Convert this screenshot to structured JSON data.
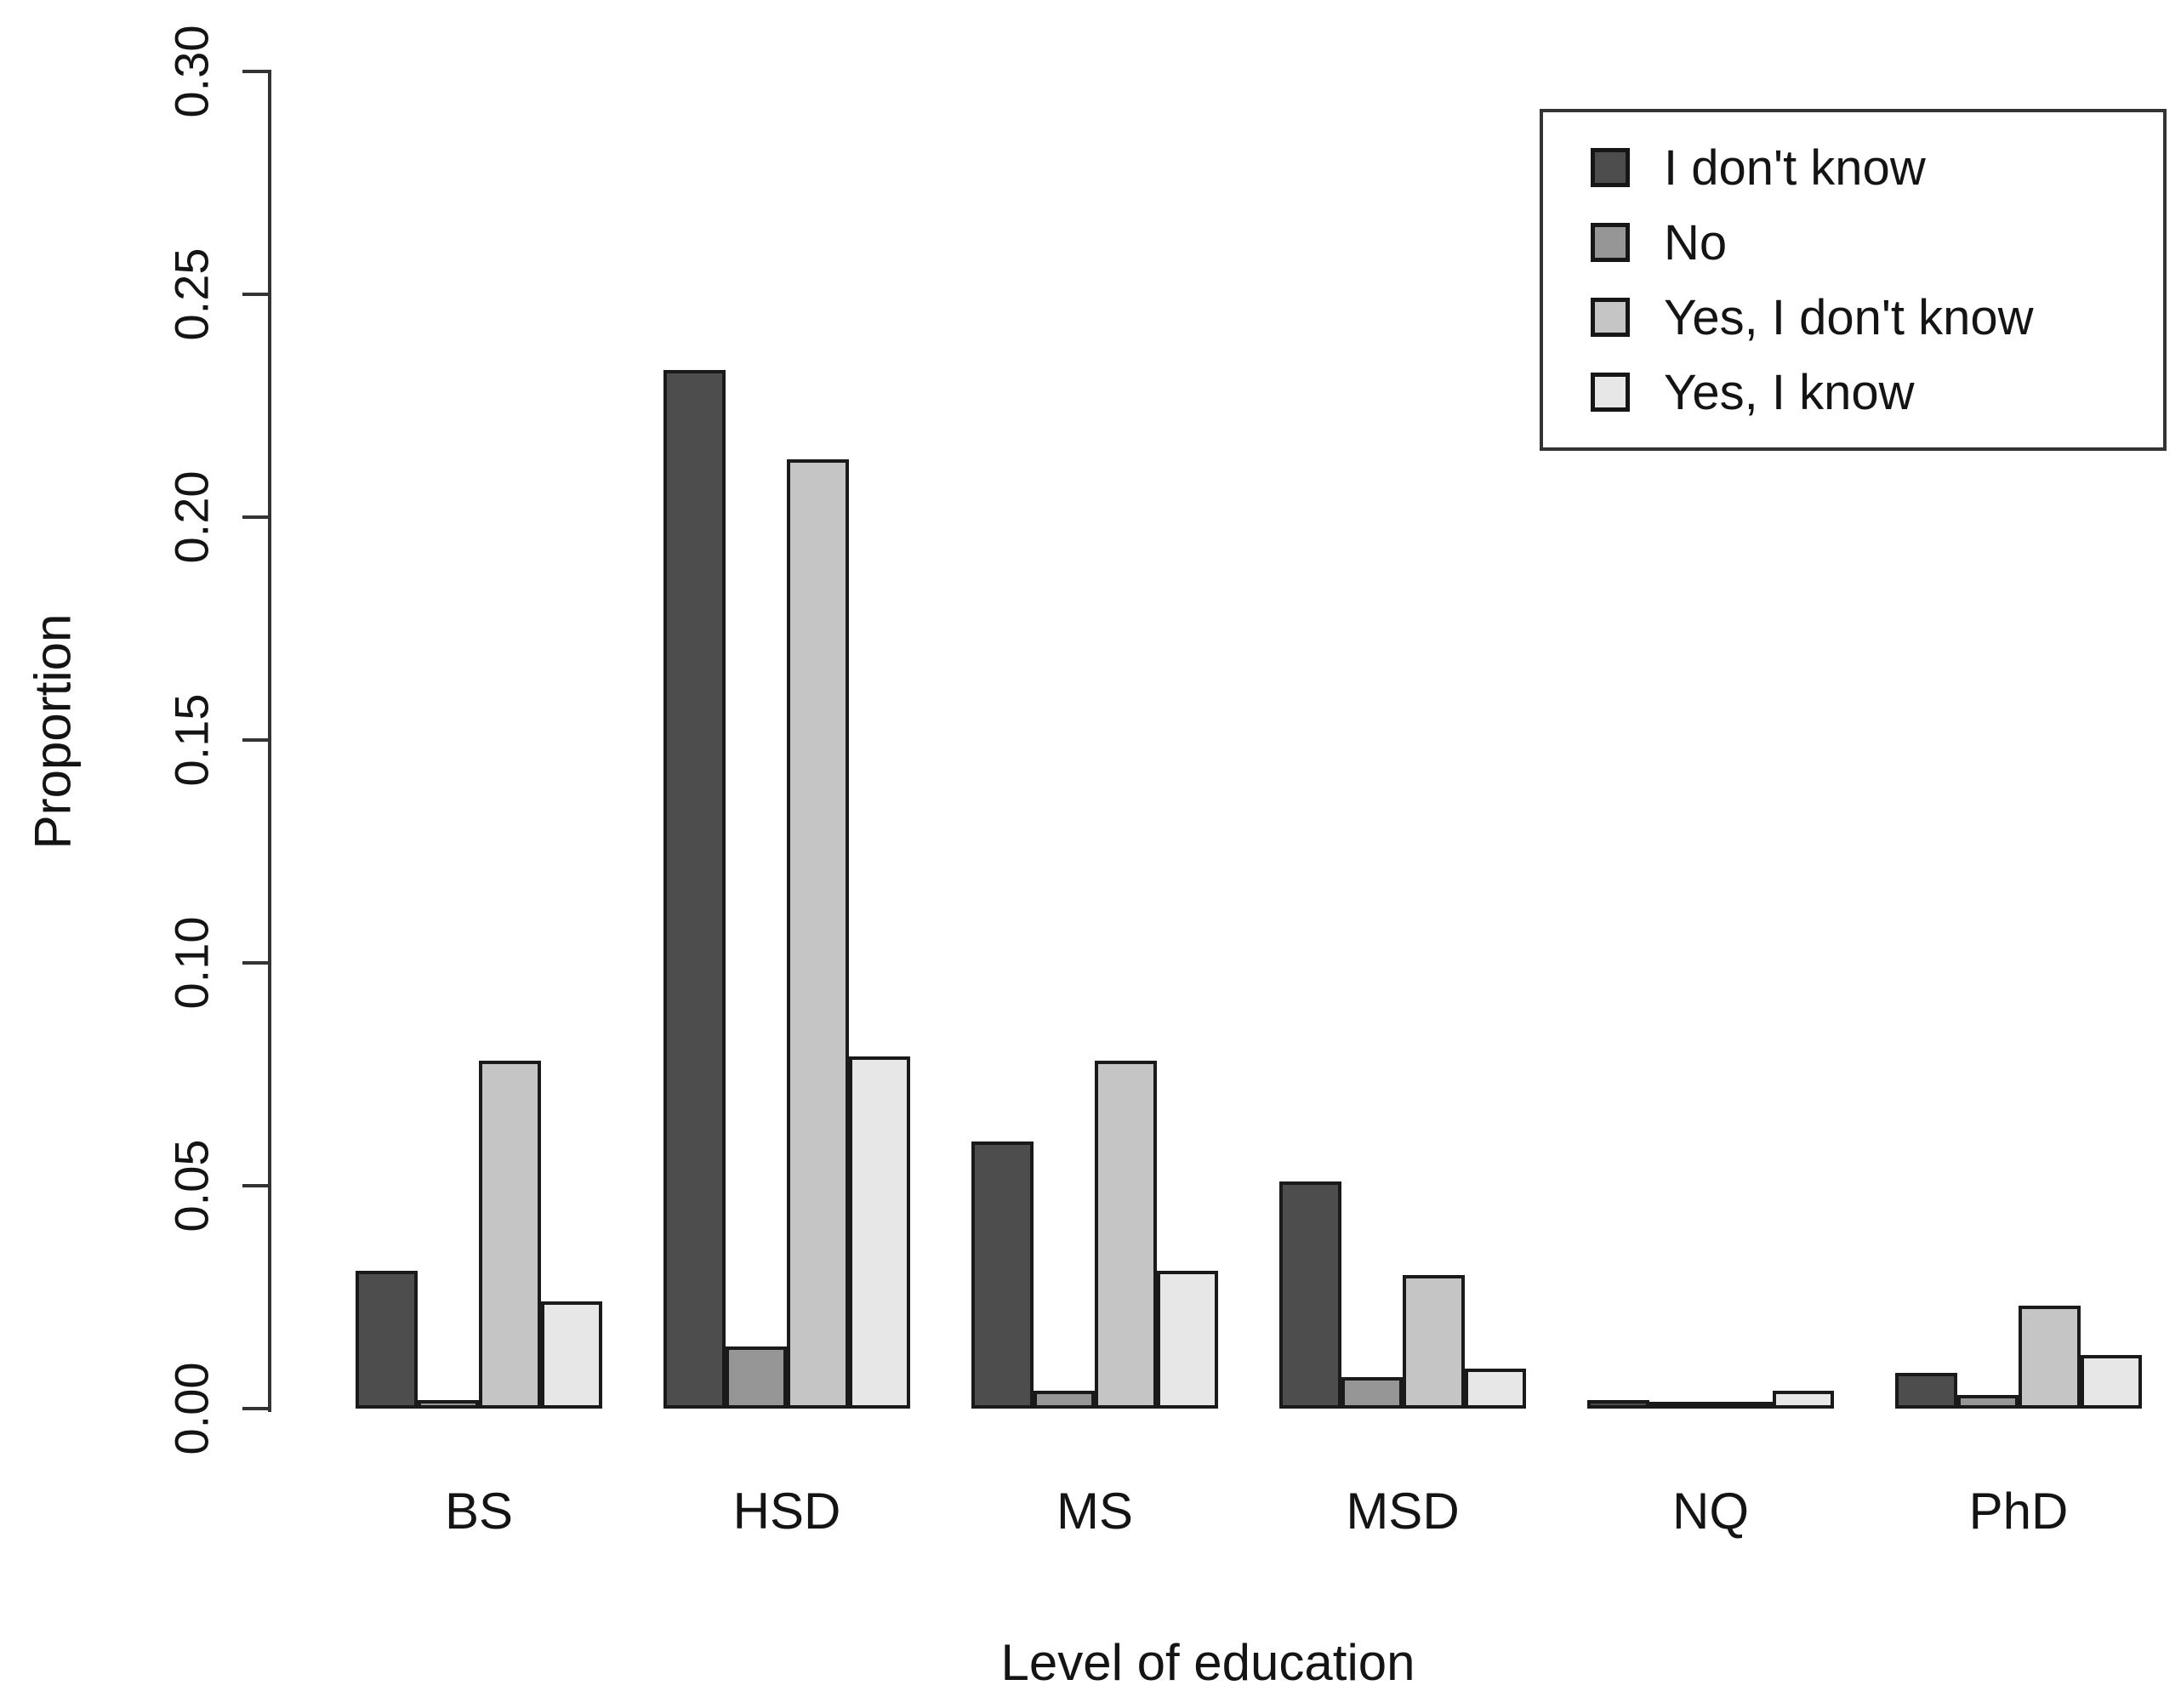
{
  "chart_data": {
    "type": "bar",
    "title": "",
    "xlabel": "Level of education",
    "ylabel": "Proportion",
    "categories": [
      "BS",
      "HSD",
      "MS",
      "MSD",
      "NQ",
      "PhD"
    ],
    "series": [
      {
        "name": "I don't know",
        "color": "#4D4D4D",
        "values": [
          0.031,
          0.233,
          0.06,
          0.051,
          0.002,
          0.008
        ]
      },
      {
        "name": "No",
        "color": "#969696",
        "values": [
          0.002,
          0.014,
          0.004,
          0.007,
          0.0,
          0.003
        ]
      },
      {
        "name": "Yes, I don't know",
        "color": "#C5C5C5",
        "values": [
          0.078,
          0.213,
          0.078,
          0.03,
          0.0,
          0.023
        ]
      },
      {
        "name": "Yes, I know",
        "color": "#E7E7E7",
        "values": [
          0.024,
          0.079,
          0.031,
          0.009,
          0.004,
          0.012
        ]
      }
    ],
    "ylim": [
      0,
      0.3
    ],
    "yticks": [
      "0.00",
      "0.05",
      "0.10",
      "0.15",
      "0.20",
      "0.25",
      "0.30"
    ],
    "grid": false,
    "legend_position": "top-right",
    "bar_border_color": "#1a1a1a",
    "axis_color": "#333333"
  }
}
